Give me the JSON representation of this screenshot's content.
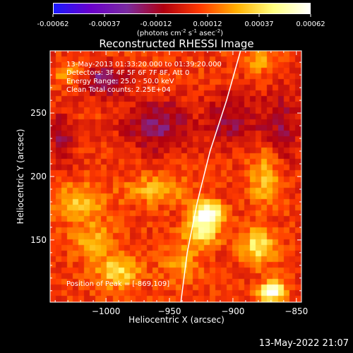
{
  "colorbar": {
    "ticks": [
      "-0.00062",
      "-0.00037",
      "-0.00012",
      "0.00012",
      "0.00037",
      "0.00062"
    ],
    "units_prefix": "(photons cm",
    "units_sup1": "-2",
    "units_mid": " s",
    "units_sup2": "-1",
    "units_mid2": " asec",
    "units_sup3": "-2",
    "units_suffix": ")",
    "colors": [
      "#1a1aff",
      "#6a00cc",
      "#7a2ba0",
      "#b00010",
      "#ff3a00",
      "#ffb000",
      "#ffff80",
      "#ffffff"
    ]
  },
  "chart_data": {
    "type": "heatmap",
    "title": "Reconstructed RHESSI Image",
    "xlabel": "Heliocentric X (arcsec)",
    "ylabel": "Heliocentric Y (arcsec)",
    "xlim": [
      -1044,
      -846
    ],
    "ylim": [
      101,
      299
    ],
    "x_ticks": [
      -1000,
      -950,
      -900,
      -850
    ],
    "x_tick_labels": [
      "−1000",
      "−950",
      "−900",
      "−850"
    ],
    "y_ticks": [
      150,
      200,
      250
    ],
    "y_tick_labels": [
      "150",
      "200",
      "250"
    ],
    "grid": false,
    "annotations": [
      "13-May-2013 01:33:20.000 to 01:39:20.000",
      "Detectors: 3F 4F 5F 6F 7F 8F, Att 0",
      "Energy Range: 25.0 - 50.0 keV",
      "Clean    Total counts: 2.25E+04"
    ],
    "peak_label": "Position of Peak = [-869,109]",
    "peak": [
      -869,
      109
    ],
    "limb_curve": [
      [
        -941,
        101
      ],
      [
        -936,
        140
      ],
      [
        -928,
        180
      ],
      [
        -918,
        220
      ],
      [
        -905,
        260
      ],
      [
        -894,
        299
      ]
    ],
    "sources": [
      {
        "x": -920,
        "y": 170,
        "intensity": 0.0006,
        "sx": 8,
        "sy": 7
      },
      {
        "x": -925,
        "y": 155,
        "intensity": 0.0003,
        "sx": 10,
        "sy": 8
      },
      {
        "x": -869,
        "y": 109,
        "intensity": 0.00062,
        "sx": 7,
        "sy": 5
      },
      {
        "x": -880,
        "y": 145,
        "intensity": 0.00035,
        "sx": 9,
        "sy": 10
      },
      {
        "x": -990,
        "y": 125,
        "intensity": 0.0003,
        "sx": 12,
        "sy": 9
      },
      {
        "x": -1020,
        "y": 180,
        "intensity": 0.00025,
        "sx": 14,
        "sy": 10
      },
      {
        "x": -960,
        "y": 190,
        "intensity": 0.00022,
        "sx": 16,
        "sy": 8
      },
      {
        "x": -875,
        "y": 200,
        "intensity": 0.00025,
        "sx": 8,
        "sy": 15
      },
      {
        "x": -1030,
        "y": 280,
        "intensity": 0.0002,
        "sx": 8,
        "sy": 6
      },
      {
        "x": -880,
        "y": 290,
        "intensity": 0.00018,
        "sx": 10,
        "sy": 6
      },
      {
        "x": -1010,
        "y": 150,
        "intensity": 0.0002,
        "sx": 12,
        "sy": 10
      },
      {
        "x": -940,
        "y": 130,
        "intensity": 0.00018,
        "sx": 10,
        "sy": 10
      }
    ],
    "negative_regions": [
      {
        "x": -1000,
        "y": 275,
        "intensity": -0.0003,
        "sx": 12,
        "sy": 8
      },
      {
        "x": -960,
        "y": 240,
        "intensity": -0.00025,
        "sx": 18,
        "sy": 15
      },
      {
        "x": -900,
        "y": 245,
        "intensity": -0.0002,
        "sx": 15,
        "sy": 15
      },
      {
        "x": -860,
        "y": 240,
        "intensity": -0.00018,
        "sx": 12,
        "sy": 20
      },
      {
        "x": -1035,
        "y": 230,
        "intensity": -0.0002,
        "sx": 8,
        "sy": 15
      }
    ]
  },
  "footer": {
    "timestamp": "13-May-2022 21:07"
  }
}
